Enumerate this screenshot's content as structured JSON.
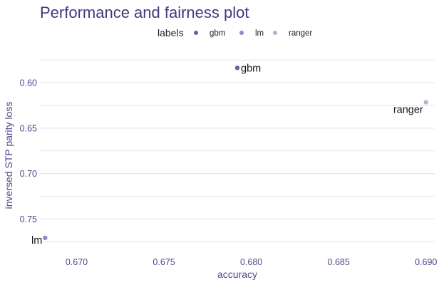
{
  "chart_data": {
    "type": "scatter",
    "title": "Performance and fairness plot",
    "xlabel": "accuracy",
    "ylabel": "inversed STP parity loss",
    "xlim": [
      0.6679,
      0.6905
    ],
    "ylim": [
      0.5575,
      0.7835
    ],
    "y_reversed": true,
    "x_ticks": [
      0.67,
      0.675,
      0.68,
      0.685,
      0.69
    ],
    "x_tick_labels": [
      "0.670",
      "0.675",
      "0.680",
      "0.685",
      "0.690"
    ],
    "y_ticks": [
      0.6,
      0.65,
      0.7,
      0.75
    ],
    "y_tick_labels": [
      "0.60",
      "0.65",
      "0.70",
      "0.75"
    ],
    "grid": true,
    "legend": {
      "title": "labels",
      "position": "top",
      "entries": [
        "gbm",
        "lm",
        "ranger"
      ]
    },
    "points": [
      {
        "label": "gbm",
        "x": 0.6792,
        "y": 0.5836,
        "color": "#67609a",
        "label_side": "right"
      },
      {
        "label": "lm",
        "x": 0.6682,
        "y": 0.7708,
        "color": "#8f8cc0",
        "label_side": "left"
      },
      {
        "label": "ranger",
        "x": 0.69,
        "y": 0.6214,
        "color": "#b4b3d6",
        "label_side": "left-below"
      }
    ]
  }
}
